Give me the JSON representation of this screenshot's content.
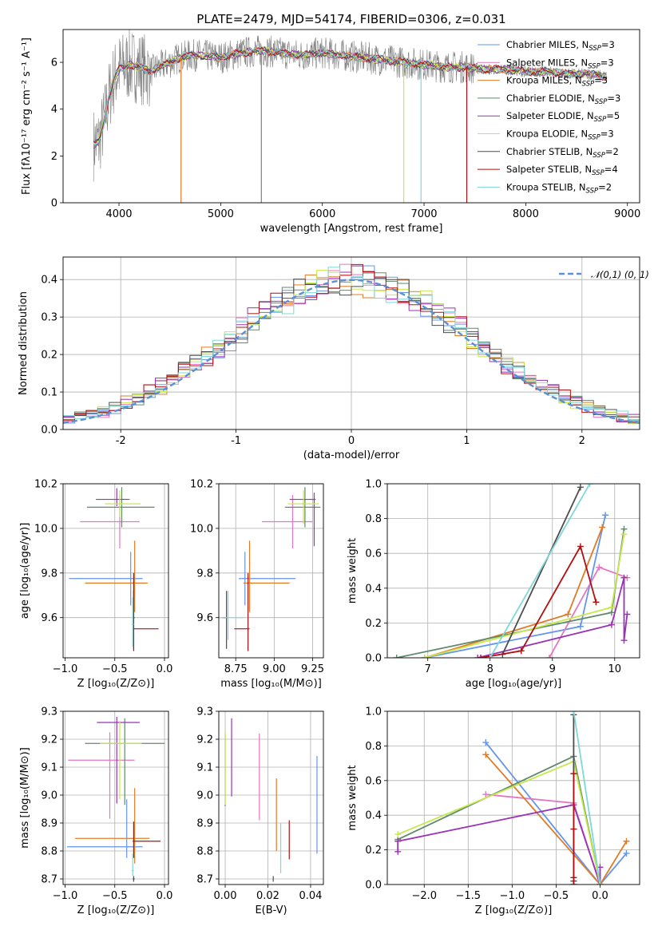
{
  "figure": {
    "title": "PLATE=2479, MJD=54174, FIBERID=0306, z=0.031"
  },
  "legend_entries": [
    {
      "name": "Chabrier MILES",
      "sub": "SSP",
      "n": "3",
      "color": "#6495ed"
    },
    {
      "name": "Salpeter MILES",
      "sub": "SSP",
      "n": "3",
      "color": "#e377c2"
    },
    {
      "name": "Kroupa MILES",
      "sub": "SSP",
      "n": "3",
      "color": "#e07b28"
    },
    {
      "name": "Chabrier ELODIE",
      "sub": "SSP",
      "n": "3",
      "color": "#5f8a6b"
    },
    {
      "name": "Salpeter ELODIE",
      "sub": "SSP",
      "n": "5",
      "color": "#9a32b5"
    },
    {
      "name": "Kroupa ELODIE",
      "sub": "SSP",
      "n": "3",
      "color": "#c7e84a"
    },
    {
      "name": "Chabrier STELIB",
      "sub": "SSP",
      "n": "2",
      "color": "#4d4d4d"
    },
    {
      "name": "Salpeter STELIB",
      "sub": "SSP",
      "n": "4",
      "color": "#b01010"
    },
    {
      "name": "Kroupa STELIB",
      "sub": "SSP",
      "n": "2",
      "color": "#7fd8d8"
    }
  ],
  "chart_data": [
    {
      "id": "spectrum",
      "type": "line",
      "xlabel": "wavelength [Angstrom, rest frame]",
      "ylabel": "Flux [fλ10⁻¹⁷ erg cm⁻² s⁻¹ A⁻¹]",
      "xlim": [
        3450,
        9120
      ],
      "ylim": [
        0,
        7.4
      ],
      "xticks": [
        4000,
        5000,
        6000,
        7000,
        8000,
        9000
      ],
      "yticks": [
        0,
        2,
        4,
        6
      ],
      "data_color": "#808080",
      "series_x": [
        3750,
        3800,
        3850,
        3900,
        3950,
        4000,
        4100,
        4200,
        4300,
        4400,
        4500,
        4600,
        4700,
        4800,
        4900,
        5000,
        5200,
        5400,
        5600,
        5800,
        6000,
        6200,
        6400,
        6600,
        6800,
        7000,
        7200,
        7400,
        7600,
        7800,
        8000,
        8200,
        8400,
        8600,
        8800
      ],
      "series_y": [
        2.5,
        2.6,
        3.4,
        4.5,
        5.3,
        5.7,
        5.9,
        5.8,
        5.6,
        5.8,
        6.0,
        6.2,
        6.3,
        6.3,
        6.25,
        6.2,
        6.4,
        6.5,
        6.4,
        6.3,
        6.4,
        6.3,
        6.2,
        6.1,
        6.0,
        5.9,
        5.8,
        5.8,
        5.7,
        5.7,
        5.6,
        5.6,
        5.5,
        5.5,
        5.4
      ],
      "absorption_spikes": [
        {
          "x": 4610,
          "color": "#e07b28"
        },
        {
          "x": 6800,
          "color": "#c7e84a"
        },
        {
          "x": 6970,
          "color": "#7fd8d8"
        },
        {
          "x": 7420,
          "color": "#b01010"
        },
        {
          "x": 5400,
          "color": "#808080"
        }
      ]
    },
    {
      "id": "residual_histogram",
      "type": "histogram",
      "xlabel": "(data-model)/error",
      "ylabel": "Normed distribution",
      "xlim": [
        -2.5,
        2.5
      ],
      "ylim": [
        0,
        0.46
      ],
      "xticks": [
        -2,
        -1,
        0,
        1,
        2
      ],
      "yticks": [
        0.0,
        0.1,
        0.2,
        0.3,
        0.4
      ],
      "bin_width": 0.1,
      "reference": {
        "label": "𝒩(0,1)",
        "color": "#5b8fd6"
      }
    },
    {
      "id": "age_vs_Z",
      "type": "errorbar",
      "xlabel": "Z [log₁₀(Z/Z⊙)]",
      "ylabel": "age  [log₁₀(age/yr)]",
      "xlim": [
        -1.02,
        0.04
      ],
      "ylim": [
        9.42,
        10.2
      ],
      "xticks": [
        -1.0,
        -0.5,
        0.0
      ],
      "yticks": [
        9.6,
        9.8,
        10.0,
        10.2
      ],
      "points": [
        {
          "x": -0.34,
          "xe": [
            0.62,
            0.12
          ],
          "y": 9.775,
          "ye": [
            0.12,
            0.12
          ],
          "color": "#6495ed"
        },
        {
          "x": -0.45,
          "xe": [
            0.4,
            0.2
          ],
          "y": 10.03,
          "ye": [
            0.12,
            0.12
          ],
          "color": "#e377c2"
        },
        {
          "x": -0.3,
          "xe": [
            0.5,
            0.13
          ],
          "y": 9.755,
          "ye": [
            0.13,
            0.19
          ],
          "color": "#e07b28"
        },
        {
          "x": -0.43,
          "xe": [
            0.35,
            0.33
          ],
          "y": 10.095,
          "ye": [
            0.09,
            0.09
          ],
          "color": "#5f8a6b"
        },
        {
          "x": -0.48,
          "xe": [
            0.21,
            0.13
          ],
          "y": 10.13,
          "ye": [
            0.03,
            0.05
          ],
          "color": "#9a32b5"
        },
        {
          "x": -0.45,
          "xe": [
            0.15,
            0.21
          ],
          "y": 10.11,
          "ye": [
            0.06,
            0.06
          ],
          "color": "#c7e84a"
        },
        {
          "x": -0.31,
          "xe": [
            0.01,
            0.01
          ],
          "y": 9.6,
          "ye": [
            0.14,
            0.12
          ],
          "color": "#4d4d4d"
        },
        {
          "x": -0.31,
          "xe": [
            0.01,
            0.25
          ],
          "y": 9.55,
          "ye": [
            0.1,
            0.25
          ],
          "color": "#b01010"
        },
        {
          "x": -0.32,
          "xe": [
            0.01,
            0.01
          ],
          "y": 9.57,
          "ye": [
            0.1,
            0.12
          ],
          "color": "#7fd8d8"
        }
      ]
    },
    {
      "id": "age_vs_mass",
      "type": "errorbar",
      "xlabel": "mass [log₁₀(M/M⊙)]",
      "ylabel": "",
      "xlim": [
        8.64,
        9.32
      ],
      "ylim": [
        9.42,
        10.2
      ],
      "xticks": [
        8.75,
        9.0,
        9.25
      ],
      "yticks": [
        9.6,
        9.8,
        10.0,
        10.2
      ],
      "points": [
        {
          "x": 8.81,
          "xe": [
            0.04,
            0.33
          ],
          "y": 9.775,
          "ye": [
            0.12,
            0.12
          ],
          "color": "#6495ed"
        },
        {
          "x": 9.12,
          "xe": [
            0.2,
            0.13
          ],
          "y": 10.03,
          "ye": [
            0.12,
            0.12
          ],
          "color": "#e377c2"
        },
        {
          "x": 8.84,
          "xe": [
            0.04,
            0.26
          ],
          "y": 9.755,
          "ye": [
            0.13,
            0.19
          ],
          "color": "#e07b28"
        },
        {
          "x": 9.2,
          "xe": [
            0.13,
            0.1
          ],
          "y": 10.095,
          "ye": [
            0.09,
            0.09
          ],
          "color": "#5f8a6b"
        },
        {
          "x": 9.26,
          "xe": [
            0.16,
            0.01
          ],
          "y": 10.13,
          "ye": [
            0.21,
            0.03
          ],
          "color": "#9a32b5"
        },
        {
          "x": 9.19,
          "xe": [
            0.1,
            0.1
          ],
          "y": 10.11,
          "ye": [
            0.09,
            0.06
          ],
          "color": "#c7e84a"
        },
        {
          "x": 8.69,
          "xe": [
            0.03,
            0.01
          ],
          "y": 9.6,
          "ye": [
            0.14,
            0.12
          ],
          "color": "#4d4d4d"
        },
        {
          "x": 8.83,
          "xe": [
            0.09,
            0.01
          ],
          "y": 9.55,
          "ye": [
            0.1,
            0.25
          ],
          "color": "#b01010"
        },
        {
          "x": 8.7,
          "xe": [
            0.08,
            0.1
          ],
          "y": 9.6,
          "ye": [
            0.1,
            0.12
          ],
          "color": "#7fd8d8"
        }
      ]
    },
    {
      "id": "weight_vs_age",
      "type": "line",
      "xlabel": "age  [log₁₀(age/yr)]",
      "ylabel": "mass weight",
      "xlim": [
        6.35,
        10.4
      ],
      "ylim": [
        0,
        1
      ],
      "xticks": [
        7,
        8,
        9,
        10
      ],
      "yticks": [
        0.0,
        0.2,
        0.4,
        0.6,
        0.8,
        1.0
      ],
      "series": [
        {
          "x": [
            6.95,
            9.45,
            9.85
          ],
          "y": [
            0.0,
            0.18,
            0.82
          ],
          "color": "#6495ed"
        },
        {
          "x": [
            8.95,
            9.75,
            10.2
          ],
          "y": [
            0.0,
            0.52,
            0.46
          ],
          "color": "#e377c2"
        },
        {
          "x": [
            6.95,
            9.25,
            9.8
          ],
          "y": [
            0.0,
            0.25,
            0.75
          ],
          "color": "#e07b28"
        },
        {
          "x": [
            6.5,
            9.95,
            10.15
          ],
          "y": [
            0.0,
            0.26,
            0.74
          ],
          "color": "#5f8a6b"
        },
        {
          "x": [
            7.8,
            9.95,
            10.15,
            10.15,
            10.2
          ],
          "y": [
            0.0,
            0.19,
            0.46,
            0.1,
            0.25
          ],
          "color": "#9a32b5"
        },
        {
          "x": [
            6.95,
            9.95,
            10.15
          ],
          "y": [
            0.0,
            0.29,
            0.71
          ],
          "color": "#c7e84a"
        },
        {
          "x": [
            8.2,
            9.45
          ],
          "y": [
            0.02,
            0.98
          ],
          "color": "#4d4d4d"
        },
        {
          "x": [
            7.85,
            8.5,
            9.45,
            9.7
          ],
          "y": [
            0.0,
            0.04,
            0.64,
            0.32
          ],
          "color": "#b01010"
        },
        {
          "x": [
            8.0,
            9.6
          ],
          "y": [
            0.0,
            1.0
          ],
          "color": "#7fd8d8"
        }
      ]
    },
    {
      "id": "mass_vs_Z",
      "type": "errorbar",
      "xlabel": "Z [log₁₀(Z/Z⊙)]",
      "ylabel": "mass [log₁₀(M/M⊙)]",
      "xlim": [
        -1.02,
        0.04
      ],
      "ylim": [
        8.68,
        9.3
      ],
      "xticks": [
        -1.0,
        -0.5,
        0.0
      ],
      "yticks": [
        8.7,
        8.8,
        8.9,
        9.0,
        9.1,
        9.2,
        9.3
      ],
      "points": [
        {
          "x": -0.38,
          "xe": [
            0.6,
            0.16
          ],
          "y": 8.815,
          "ye": [
            0.04,
            0.17
          ],
          "color": "#6495ed"
        },
        {
          "x": -0.55,
          "xe": [
            0.42,
            0.25
          ],
          "y": 9.125,
          "ye": [
            0.21,
            0.1
          ],
          "color": "#e377c2"
        },
        {
          "x": -0.3,
          "xe": [
            0.6,
            0.15
          ],
          "y": 8.845,
          "ye": [
            0.09,
            0.18
          ],
          "color": "#e07b28"
        },
        {
          "x": -0.4,
          "xe": [
            0.4,
            0.4
          ],
          "y": 9.185,
          "ye": [
            0.22,
            0.09
          ],
          "color": "#5f8a6b"
        },
        {
          "x": -0.48,
          "xe": [
            0.2,
            0.23
          ],
          "y": 9.26,
          "ye": [
            0.29,
            0.02
          ],
          "color": "#9a32b5"
        },
        {
          "x": -0.45,
          "xe": [
            0.2,
            0.22
          ],
          "y": 9.185,
          "ye": [
            0.2,
            0.08
          ],
          "color": "#c7e84a"
        },
        {
          "x": -0.31,
          "xe": [
            0.01,
            0.01
          ],
          "y": 8.7,
          "ye": [
            0.01,
            0.01
          ],
          "color": "#4d4d4d"
        },
        {
          "x": -0.31,
          "xe": [
            0.01,
            0.27
          ],
          "y": 8.835,
          "ye": [
            0.06,
            0.07
          ],
          "color": "#b01010"
        },
        {
          "x": -0.32,
          "xe": [
            0.01,
            0.01
          ],
          "y": 8.73,
          "ye": [
            0.02,
            0.06
          ],
          "color": "#7fd8d8"
        }
      ]
    },
    {
      "id": "mass_vs_EBV",
      "type": "errorbar",
      "xlabel": "E(B-V)",
      "ylabel": "",
      "xlim": [
        -0.003,
        0.046
      ],
      "ylim": [
        8.68,
        9.3
      ],
      "xticks": [
        0.0,
        0.02,
        0.04
      ],
      "yticks": [
        8.7,
        8.8,
        8.9,
        9.0,
        9.1,
        9.2,
        9.3
      ],
      "points": [
        {
          "x": 0.043,
          "xe": [
            0,
            0
          ],
          "y": 8.96,
          "ye": [
            0.17,
            0.18
          ],
          "color": "#6495ed"
        },
        {
          "x": 0.016,
          "xe": [
            0,
            0
          ],
          "y": 9.07,
          "ye": [
            0.16,
            0.15
          ],
          "color": "#e377c2"
        },
        {
          "x": 0.024,
          "xe": [
            0,
            0
          ],
          "y": 8.9,
          "ye": [
            0.1,
            0.16
          ],
          "color": "#e07b28"
        },
        {
          "x": 0.0,
          "xe": [
            0,
            0
          ],
          "y": 9.1,
          "ye": [
            0.14,
            0.12
          ],
          "color": "#5f8a6b"
        },
        {
          "x": 0.003,
          "xe": [
            0,
            0
          ],
          "y": 9.135,
          "ye": [
            0.14,
            0.14
          ],
          "color": "#9a32b5"
        },
        {
          "x": 0.0,
          "xe": [
            0,
            0
          ],
          "y": 9.095,
          "ye": [
            0.13,
            0.13
          ],
          "color": "#c7e84a"
        },
        {
          "x": 0.0225,
          "xe": [
            0,
            0
          ],
          "y": 8.7,
          "ye": [
            0.01,
            0.01
          ],
          "color": "#4d4d4d"
        },
        {
          "x": 0.03,
          "xe": [
            0,
            0
          ],
          "y": 8.84,
          "ye": [
            0.07,
            0.07
          ],
          "color": "#b01010"
        },
        {
          "x": 0.026,
          "xe": [
            0,
            0
          ],
          "y": 8.81,
          "ye": [
            0.09,
            0.09
          ],
          "color": "#7fd8d8"
        }
      ]
    },
    {
      "id": "weight_vs_Z",
      "type": "line",
      "xlabel": "Z [log₁₀(Z/Z⊙)]",
      "ylabel": "mass weight",
      "xlim": [
        -2.42,
        0.45
      ],
      "ylim": [
        0,
        1
      ],
      "xticks": [
        -2.0,
        -1.5,
        -1.0,
        -0.5,
        0.0
      ],
      "yticks": [
        0.0,
        0.2,
        0.4,
        0.6,
        0.8,
        1.0
      ],
      "series": [
        {
          "x": [
            -1.3,
            0.0,
            0.3
          ],
          "y": [
            0.82,
            0.0,
            0.18
          ],
          "color": "#6495ed"
        },
        {
          "x": [
            -1.3,
            -0.3,
            0.0
          ],
          "y": [
            0.52,
            0.47,
            0.0
          ],
          "color": "#e377c2"
        },
        {
          "x": [
            -1.3,
            0.0,
            0.3
          ],
          "y": [
            0.75,
            0.0,
            0.25
          ],
          "color": "#e07b28"
        },
        {
          "x": [
            -2.3,
            -0.3,
            0.0
          ],
          "y": [
            0.26,
            0.74,
            0.0
          ],
          "color": "#5f8a6b"
        },
        {
          "x": [
            -2.3,
            -2.3,
            -0.3,
            0.0,
            0.0
          ],
          "y": [
            0.19,
            0.25,
            0.46,
            0.0,
            0.1
          ],
          "color": "#9a32b5"
        },
        {
          "x": [
            -2.3,
            -0.3,
            0.0
          ],
          "y": [
            0.29,
            0.71,
            0.0
          ],
          "color": "#c7e84a"
        },
        {
          "x": [
            -0.3,
            -0.3
          ],
          "y": [
            0.98,
            0.02
          ],
          "color": "#4d4d4d"
        },
        {
          "x": [
            -0.3,
            -0.3,
            -0.3,
            -0.3
          ],
          "y": [
            0.64,
            0.32,
            0.04,
            0.0
          ],
          "color": "#b01010"
        },
        {
          "x": [
            -0.3,
            0.0
          ],
          "y": [
            1.0,
            0.0
          ],
          "color": "#7fd8d8"
        }
      ]
    }
  ]
}
